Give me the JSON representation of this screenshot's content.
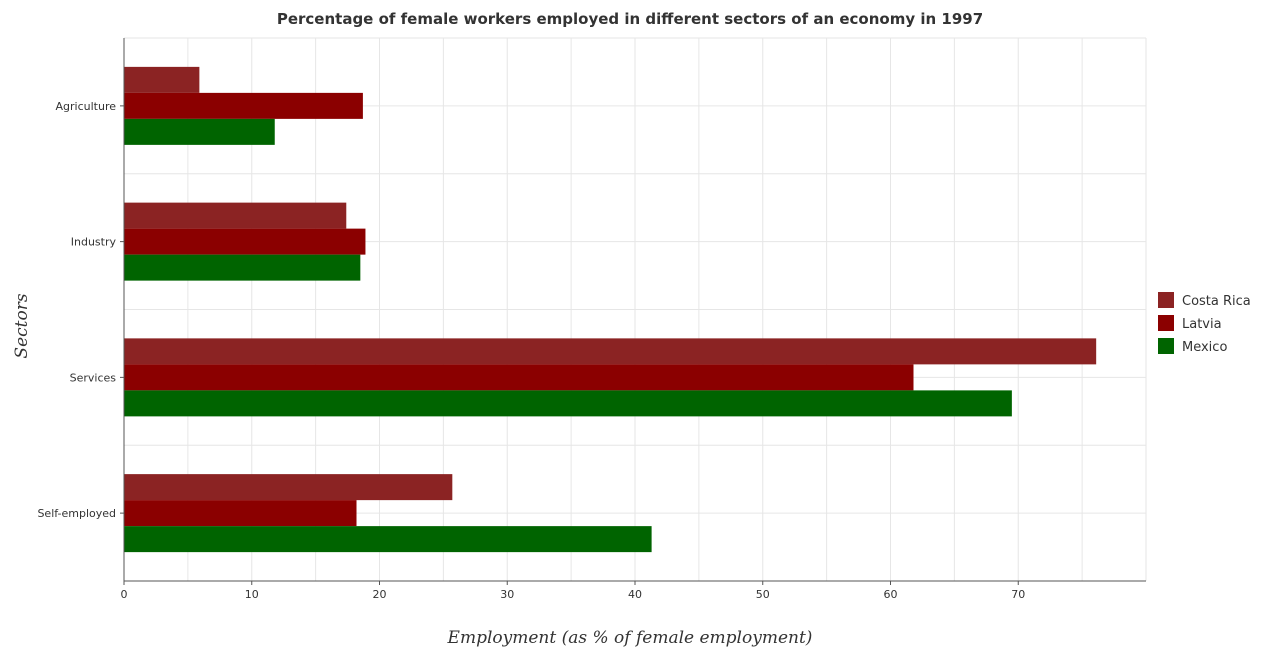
{
  "chart_data": {
    "type": "bar",
    "orientation": "horizontal",
    "title": "Percentage of female workers employed in different sectors of an economy in 1997",
    "xlabel": "Employment (as % of female employment)",
    "ylabel": "Sectors",
    "categories": [
      "Agriculture",
      "Industry",
      "Services",
      "Self-employed"
    ],
    "series": [
      {
        "name": "Costa Rica",
        "color": "#8b2323",
        "values": [
          5.9,
          17.4,
          76.1,
          25.7
        ]
      },
      {
        "name": "Latvia",
        "color": "#8b0000",
        "values": [
          18.7,
          18.9,
          61.8,
          18.2
        ]
      },
      {
        "name": "Mexico",
        "color": "#006400",
        "values": [
          11.8,
          18.5,
          69.5,
          41.3
        ]
      }
    ],
    "xlim": [
      0,
      80
    ],
    "xticks": [
      0,
      10,
      20,
      30,
      40,
      50,
      60,
      70
    ],
    "grid": true,
    "legend_position": "right"
  }
}
